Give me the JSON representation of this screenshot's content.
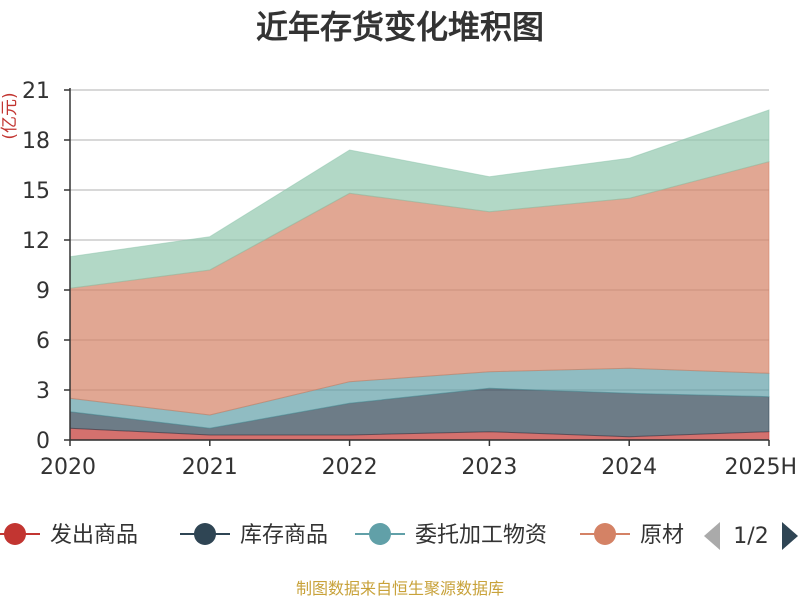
{
  "chart_data": {
    "type": "area",
    "stacked": true,
    "title": "近年存货变化堆积图",
    "ylabel": "(亿元)",
    "x": [
      "2020",
      "2021",
      "2022",
      "2023",
      "2024",
      "2025H"
    ],
    "ylim": [
      0,
      21
    ],
    "yticks": [
      0,
      3,
      6,
      9,
      12,
      15,
      18,
      21
    ],
    "grid": true,
    "legend_position": "bottom",
    "series": [
      {
        "name": "发出商品",
        "color": "#c23531",
        "values": [
          0.7,
          0.3,
          0.3,
          0.5,
          0.2,
          0.5
        ]
      },
      {
        "name": "库存商品",
        "color": "#2f4554",
        "values": [
          1.0,
          0.4,
          1.9,
          2.6,
          2.6,
          2.1
        ]
      },
      {
        "name": "委托加工物资",
        "color": "#61a0a8",
        "values": [
          0.8,
          0.8,
          1.3,
          1.0,
          1.5,
          1.4
        ]
      },
      {
        "name": "原材料",
        "color": "#d48265",
        "values": [
          6.6,
          8.7,
          11.3,
          9.6,
          10.2,
          12.7
        ]
      },
      {
        "name": "",
        "color": "#91c7ae",
        "values": [
          1.9,
          2.0,
          2.6,
          2.1,
          2.4,
          3.1
        ]
      }
    ],
    "legend_visible": [
      "发出商品",
      "库存商品",
      "委托加工物资",
      "原材"
    ],
    "legend_page": "1/2"
  },
  "footer": {
    "source": "制图数据来自恒生聚源数据库"
  },
  "icons": {
    "prev": "arrow-left-icon",
    "next": "arrow-right-icon"
  }
}
